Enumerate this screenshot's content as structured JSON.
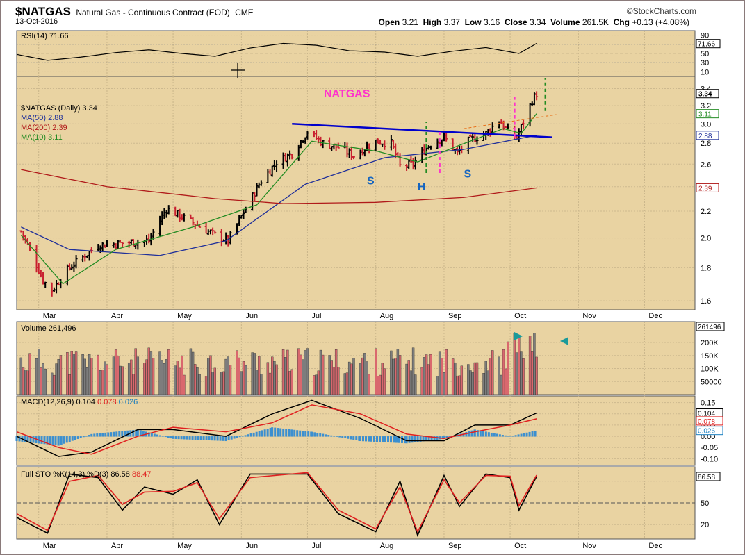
{
  "header": {
    "symbol": "$NATGAS",
    "description": "Natural Gas - Continuous Contract (EOD)",
    "exchange": "CME",
    "date": "13-Oct-2016",
    "watermark": "©StockCharts.com",
    "open_label": "Open",
    "open": "3.21",
    "high_label": "High",
    "high": "3.37",
    "low_label": "Low",
    "low": "3.16",
    "close_label": "Close",
    "close": "3.34",
    "volume_label": "Volume",
    "volume": "261.5K",
    "chg_label": "Chg",
    "chg": "+0.13 (+4.08%)"
  },
  "colors": {
    "panel_bg": "#e9d3a2",
    "bar_up": "#000000",
    "bar_down": "#c8202f",
    "ma50": "#1f2f9a",
    "ma200": "#b01a1a",
    "ma10": "#228b22",
    "annotation": "#ff33cc",
    "neckline": "#0000cc",
    "teal": "#1a9a9a"
  },
  "chart_data": [
    {
      "type": "line",
      "panel": "rsi",
      "legend": "RSI(14) 71.66",
      "ylim": [
        0,
        100
      ],
      "ticks": [
        "90",
        "70",
        "50",
        "30",
        "10"
      ],
      "last_label": "71.66",
      "x": [
        "Feb-20",
        "Mar-5",
        "Mar-20",
        "Apr-5",
        "Apr-20",
        "May-5",
        "May-20",
        "Jun-5",
        "Jun-20",
        "Jul-5",
        "Jul-20",
        "Aug-5",
        "Aug-20",
        "Sep-5",
        "Sep-20",
        "Oct-5",
        "Oct-13"
      ],
      "values": [
        48,
        35,
        42,
        52,
        58,
        50,
        44,
        62,
        72,
        68,
        56,
        53,
        44,
        55,
        63,
        50,
        72
      ]
    },
    {
      "type": "bar",
      "panel": "price",
      "title": "NATGAS",
      "legend": [
        "$NATGAS (Daily) 3.34",
        "MA(50) 2.88",
        "MA(200) 2.39",
        "MA(10) 3.11"
      ],
      "y_scale": "log",
      "ylim": [
        1.55,
        3.55
      ],
      "ticks": [
        "3.4",
        "3.2",
        "3.0",
        "2.8",
        "2.6",
        "2.4",
        "2.2",
        "2.0",
        "1.8",
        "1.6"
      ],
      "price_labels": [
        "3.34",
        "3.11",
        "2.88",
        "2.39"
      ],
      "x_months": [
        "Mar",
        "Apr",
        "May",
        "Jun",
        "Jul",
        "Aug",
        "Sep",
        "Oct",
        "Nov",
        "Dec"
      ],
      "price_path": [
        [
          "Feb-22",
          2.05
        ],
        [
          "Mar-3",
          1.72
        ],
        [
          "Mar-7",
          1.66
        ],
        [
          "Mar-15",
          1.8
        ],
        [
          "Mar-28",
          1.95
        ],
        [
          "Apr-5",
          1.96
        ],
        [
          "Apr-20",
          1.98
        ],
        [
          "Apr-28",
          2.22
        ],
        [
          "May-8",
          2.13
        ],
        [
          "May-20",
          2.02
        ],
        [
          "May-26",
          1.98
        ],
        [
          "Jun-3",
          2.22
        ],
        [
          "Jun-10",
          2.45
        ],
        [
          "Jun-17",
          2.62
        ],
        [
          "Jun-24",
          2.7
        ],
        [
          "Jul-1",
          2.92
        ],
        [
          "Jul-8",
          2.8
        ],
        [
          "Jul-15",
          2.76
        ],
        [
          "Jul-22",
          2.68
        ],
        [
          "Aug-1",
          2.82
        ],
        [
          "Aug-8",
          2.8
        ],
        [
          "Aug-12",
          2.58
        ],
        [
          "Aug-18",
          2.6
        ],
        [
          "Aug-25",
          2.78
        ],
        [
          "Sep-1",
          2.86
        ],
        [
          "Sep-7",
          2.7
        ],
        [
          "Sep-12",
          2.82
        ],
        [
          "Sep-20",
          2.9
        ],
        [
          "Sep-26",
          3.04
        ],
        [
          "Sep-30",
          2.92
        ],
        [
          "Oct-4",
          2.86
        ],
        [
          "Oct-7",
          3.02
        ],
        [
          "Oct-11",
          3.26
        ],
        [
          "Oct-13",
          3.34
        ]
      ],
      "series": [
        {
          "name": "MA(50) 2.88",
          "points": [
            [
              "Feb-22",
              2.08
            ],
            [
              "Mar-15",
              1.92
            ],
            [
              "Apr-25",
              1.88
            ],
            [
              "May-25",
              1.98
            ],
            [
              "Jun-30",
              2.42
            ],
            [
              "Aug-5",
              2.66
            ],
            [
              "Sep-10",
              2.74
            ],
            [
              "Oct-13",
              2.88
            ]
          ]
        },
        {
          "name": "MA(200) 2.39",
          "points": [
            [
              "Feb-22",
              2.55
            ],
            [
              "Apr-1",
              2.4
            ],
            [
              "May-20",
              2.3
            ],
            [
              "Jun-20",
              2.26
            ],
            [
              "Aug-1",
              2.27
            ],
            [
              "Sep-10",
              2.31
            ],
            [
              "Oct-13",
              2.39
            ]
          ]
        },
        {
          "name": "MA(10) 3.11",
          "points": [
            [
              "Feb-22",
              2.02
            ],
            [
              "Mar-12",
              1.7
            ],
            [
              "Apr-5",
              1.92
            ],
            [
              "May-10",
              2.08
            ],
            [
              "Jun-8",
              2.25
            ],
            [
              "Jul-3",
              2.82
            ],
            [
              "Aug-2",
              2.72
            ],
            [
              "Aug-20",
              2.62
            ],
            [
              "Sep-8",
              2.78
            ],
            [
              "Sep-28",
              2.95
            ],
            [
              "Oct-6",
              2.9
            ],
            [
              "Oct-13",
              3.11
            ]
          ]
        }
      ],
      "neckline": [
        [
          "Jun-24",
          3.0
        ],
        [
          "Oct-20",
          2.86
        ]
      ],
      "trend_dashed": [
        [
          "Sep-10",
          2.95
        ],
        [
          "Oct-22",
          3.1
        ]
      ],
      "annotations": [
        {
          "text": "S",
          "x": "Jul-28",
          "y": 2.42
        },
        {
          "text": "H",
          "x": "Aug-20",
          "y": 2.37
        },
        {
          "text": "S",
          "x": "Sep-10",
          "y": 2.48
        }
      ]
    },
    {
      "type": "bar",
      "panel": "volume",
      "legend": "Volume 261,496",
      "ylim": [
        0,
        280000
      ],
      "ticks": [
        "200K",
        "150K",
        "100K",
        "50000"
      ],
      "last_label": "261496"
    },
    {
      "type": "line",
      "panel": "macd",
      "legend": [
        "MACD(12,26,9)",
        "0.104",
        "0.078",
        "0.026"
      ],
      "ylim": [
        -0.13,
        0.18
      ],
      "ticks": [
        "0.15",
        "0.10",
        "0.05",
        "0.00",
        "-0.05",
        "-0.10"
      ],
      "labels": [
        "0.104",
        "0.078",
        "0.026"
      ],
      "x": [
        "Feb-20",
        "Mar-10",
        "Mar-25",
        "Apr-15",
        "May-1",
        "May-25",
        "Jun-15",
        "Jul-3",
        "Jul-25",
        "Aug-15",
        "Sep-1",
        "Sep-15",
        "Oct-1",
        "Oct-13"
      ],
      "series": [
        {
          "name": "MACD",
          "values": [
            0.0,
            -0.09,
            -0.07,
            0.03,
            0.03,
            0.0,
            0.1,
            0.16,
            0.08,
            -0.02,
            -0.02,
            0.05,
            0.05,
            0.104
          ]
        },
        {
          "name": "Signal",
          "values": [
            0.02,
            -0.05,
            -0.08,
            0.0,
            0.04,
            0.02,
            0.06,
            0.14,
            0.1,
            0.01,
            -0.01,
            0.02,
            0.05,
            0.078
          ]
        },
        {
          "name": "Histogram",
          "values": [
            -0.02,
            -0.04,
            0.01,
            0.03,
            -0.01,
            -0.02,
            0.04,
            0.02,
            -0.02,
            -0.03,
            -0.01,
            0.03,
            0.0,
            0.026
          ]
        }
      ]
    },
    {
      "type": "line",
      "panel": "stochastic",
      "legend": [
        "Full STO %K(14,3) %D(3)",
        "86.58",
        "88.47"
      ],
      "ylim": [
        0,
        100
      ],
      "ticks": [
        "50",
        "20"
      ],
      "last_label": "86.58",
      "x": [
        "Feb-20",
        "Mar-5",
        "Mar-15",
        "Mar-28",
        "Apr-8",
        "Apr-18",
        "May-1",
        "May-12",
        "May-22",
        "Jun-5",
        "Jul-1",
        "Jul-15",
        "Aug-1",
        "Aug-12",
        "Aug-20",
        "Sep-1",
        "Sep-8",
        "Sep-20",
        "Oct-1",
        "Oct-5",
        "Oct-13"
      ],
      "series": [
        {
          "name": "%K",
          "values": [
            30,
            8,
            90,
            85,
            40,
            72,
            62,
            82,
            20,
            90,
            90,
            35,
            10,
            80,
            5,
            88,
            45,
            90,
            85,
            40,
            86.58
          ]
        },
        {
          "name": "%D",
          "values": [
            35,
            12,
            80,
            88,
            48,
            65,
            66,
            78,
            28,
            85,
            92,
            40,
            14,
            72,
            10,
            82,
            50,
            88,
            87,
            46,
            88.47
          ]
        }
      ]
    }
  ]
}
